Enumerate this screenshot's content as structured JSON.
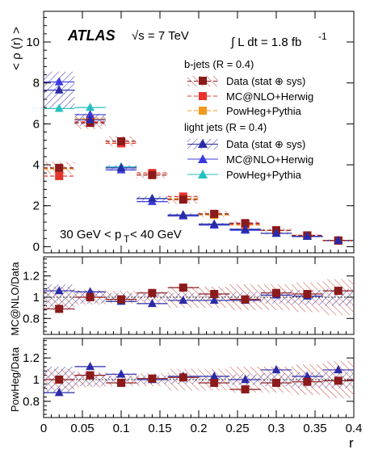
{
  "labels": {
    "experiment": "ATLAS",
    "energy": "√s = 7 TeV",
    "lumi_main": "∫ L dt = 1.8 fb",
    "lumi_exp": "-1",
    "pt_range_main": "30 GeV < p",
    "pt_range_sub": "T",
    "pt_range_tail": " < 40 GeV",
    "ylabel_top": "< ρ (r) >",
    "ylabel_mid": "MC@NLO/Data",
    "ylabel_bot": "PowHeg/Data",
    "xlabel": "r"
  },
  "legend": {
    "bjets_header": "b-jets (R = 0.4)",
    "bjets_entries": [
      "Data (stat ⊕ sys)",
      "MC@NLO+Herwig",
      "PowHeg+Pythia"
    ],
    "light_header": "light jets (R = 0.4)",
    "light_entries": [
      "Data (stat ⊕ sys)",
      "MC@NLO+Herwig",
      "PowHeg+Pythia"
    ]
  },
  "colors": {
    "bjet_data": "#8b1a1a",
    "bjet_hatch": "#c8463a",
    "bjet_mcnlo": "#e8332d",
    "bjet_powheg": "#f39a1e",
    "light_data": "#2a2aa8",
    "light_hatch": "#3b3bb0",
    "light_mcnlo": "#3b3bdc",
    "light_powheg": "#26bfbf"
  },
  "chart_data": [
    {
      "type": "line",
      "panel": "main",
      "xlim": [
        0,
        0.4
      ],
      "ylim": [
        -0.3,
        11.5
      ],
      "x_ticks": [
        0,
        0.05,
        0.1,
        0.15,
        0.2,
        0.25,
        0.3,
        0.35,
        0.4
      ],
      "y_ticks": [
        0,
        2,
        4,
        6,
        8,
        10
      ],
      "bin_edges": [
        0,
        0.04,
        0.08,
        0.12,
        0.16,
        0.2,
        0.24,
        0.28,
        0.32,
        0.36,
        0.4
      ],
      "x": [
        0.02,
        0.06,
        0.1,
        0.14,
        0.18,
        0.22,
        0.26,
        0.3,
        0.34,
        0.38
      ],
      "series": [
        {
          "name": "b-jets Data (stat ⊕ sys)",
          "values": [
            3.85,
            6.05,
            5.15,
            3.5,
            2.3,
            1.6,
            1.15,
            0.8,
            0.55,
            0.3
          ],
          "errors": [
            0.3,
            0.3,
            0.25,
            0.15,
            0.2,
            0.15,
            0.12,
            0.1,
            0.08,
            0.05
          ]
        },
        {
          "name": "b-jets MC@NLO+Herwig",
          "values": [
            3.45,
            6.1,
            5.05,
            3.6,
            2.45,
            1.6,
            1.1,
            0.8,
            0.55,
            0.3
          ]
        },
        {
          "name": "b-jets PowHeg+Pythia",
          "values": [
            3.8,
            6.25,
            5.05,
            3.5,
            2.35,
            1.55,
            1.05,
            0.8,
            0.55,
            0.3
          ]
        },
        {
          "name": "light jets Data (stat ⊕ sys)",
          "values": [
            7.65,
            6.2,
            3.85,
            2.35,
            1.55,
            1.1,
            0.85,
            0.65,
            0.5,
            0.3
          ],
          "errors": [
            0.9,
            0.3,
            0.15,
            0.12,
            0.08,
            0.06,
            0.05,
            0.05,
            0.04,
            0.03
          ]
        },
        {
          "name": "light jets MC@NLO+Herwig",
          "values": [
            8.05,
            6.45,
            3.75,
            2.2,
            1.5,
            1.05,
            0.8,
            0.65,
            0.5,
            0.3
          ]
        },
        {
          "name": "light jets PowHeg+Pythia",
          "values": [
            6.75,
            6.8,
            3.9,
            2.35,
            1.55,
            1.1,
            0.85,
            0.65,
            0.5,
            0.3
          ]
        }
      ]
    },
    {
      "type": "line",
      "panel": "MC@NLO/Data",
      "xlim": [
        0,
        0.4
      ],
      "ylim": [
        0.65,
        1.38
      ],
      "y_ticks": [
        0.8,
        1,
        1.2
      ],
      "x": [
        0.02,
        0.06,
        0.1,
        0.14,
        0.18,
        0.22,
        0.26,
        0.3,
        0.34,
        0.38
      ],
      "series": [
        {
          "name": "b-jets",
          "values": [
            0.89,
            1.0,
            0.98,
            1.04,
            1.09,
            1.03,
            0.98,
            1.04,
            1.03,
            1.06
          ],
          "band": [
            0.1,
            0.07,
            0.06,
            0.06,
            0.1,
            0.1,
            0.12,
            0.12,
            0.14,
            0.17
          ]
        },
        {
          "name": "light jets",
          "values": [
            1.06,
            1.05,
            0.96,
            0.94,
            0.97,
            0.97,
            0.97,
            1.02,
            1.01,
            1.06
          ],
          "band": [
            0.12,
            0.06,
            0.04,
            0.04,
            0.04,
            0.04,
            0.05,
            0.06,
            0.07,
            0.08
          ]
        }
      ]
    },
    {
      "type": "line",
      "panel": "PowHeg/Data",
      "xlim": [
        0,
        0.4
      ],
      "ylim": [
        0.65,
        1.38
      ],
      "y_ticks": [
        0.8,
        1,
        1.2
      ],
      "x": [
        0.02,
        0.06,
        0.1,
        0.14,
        0.18,
        0.22,
        0.26,
        0.3,
        0.34,
        0.38
      ],
      "series": [
        {
          "name": "b-jets",
          "values": [
            1.0,
            1.04,
            0.97,
            1.01,
            1.02,
            0.97,
            0.91,
            0.97,
            0.98,
            0.99
          ],
          "band": [
            0.1,
            0.07,
            0.06,
            0.06,
            0.1,
            0.1,
            0.12,
            0.12,
            0.14,
            0.17
          ]
        },
        {
          "name": "light jets",
          "values": [
            0.88,
            1.12,
            1.05,
            1.0,
            1.03,
            1.03,
            1.0,
            1.09,
            1.03,
            1.09
          ],
          "band": [
            0.12,
            0.06,
            0.04,
            0.04,
            0.04,
            0.04,
            0.05,
            0.06,
            0.07,
            0.08
          ]
        }
      ]
    }
  ]
}
